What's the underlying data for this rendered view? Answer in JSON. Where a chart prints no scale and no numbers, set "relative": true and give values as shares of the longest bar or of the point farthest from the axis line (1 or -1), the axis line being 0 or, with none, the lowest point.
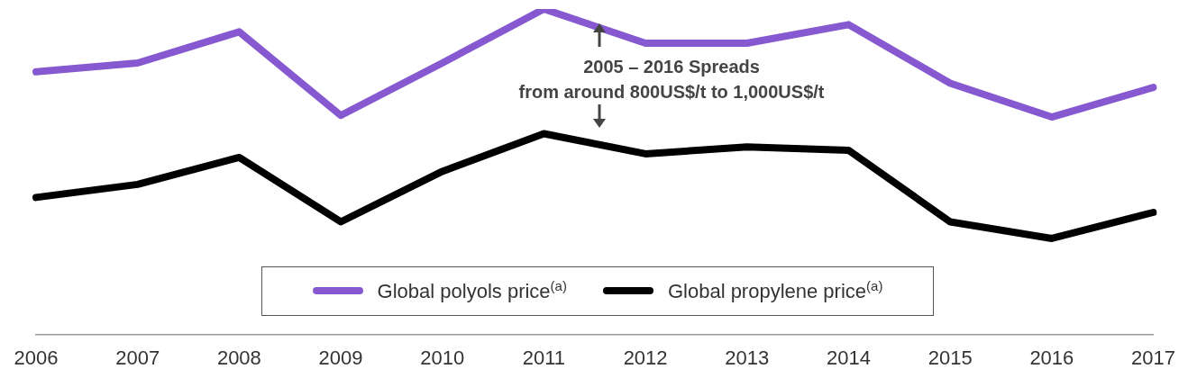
{
  "chart_data": {
    "type": "line",
    "relative": true,
    "categories": [
      "2006",
      "2007",
      "2008",
      "2009",
      "2010",
      "2011",
      "2012",
      "2013",
      "2014",
      "2015",
      "2016",
      "2017"
    ],
    "series": [
      {
        "name": "Global polyols price$^{(a)}$",
        "color": "#8759d1",
        "values": [
          0.807,
          0.834,
          0.93,
          0.673,
          0.834,
          1,
          0.895,
          0.895,
          0.952,
          0.772,
          0.668,
          0.759
        ]
      },
      {
        "name": "Global propylene price$^{(a)}$",
        "color": "#000000",
        "values": [
          0.421,
          0.461,
          0.544,
          0.346,
          0.501,
          0.617,
          0.555,
          0.576,
          0.566,
          0.346,
          0.295,
          0.375
        ]
      }
    ],
    "annotations": [
      "2005 – 2016 Spreads",
      "from around 800US$/t to 1,000US$/t"
    ],
    "legend": "bottom",
    "grid": false,
    "marker": "none",
    "line_style": "solid"
  }
}
